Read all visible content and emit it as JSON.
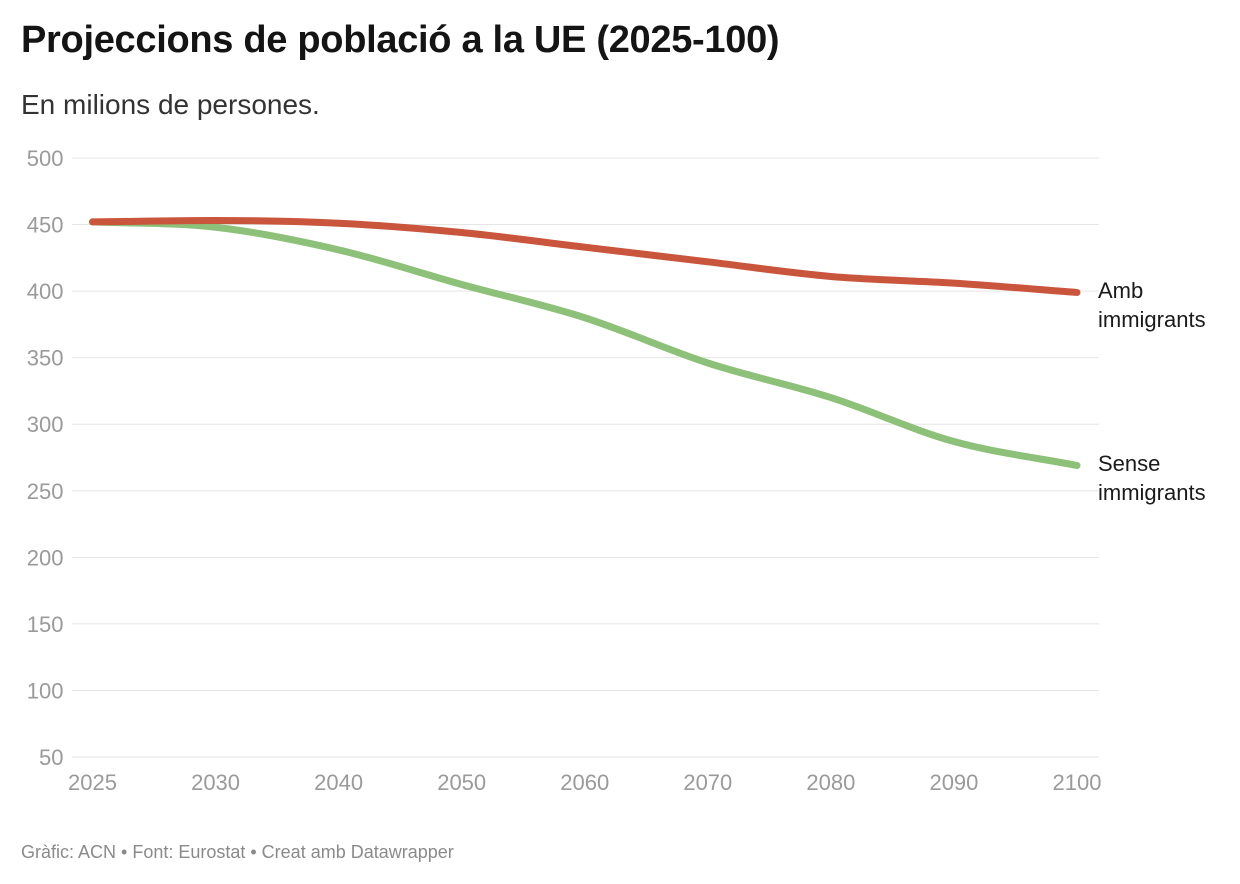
{
  "header": {
    "title": "Projeccions de població a la UE (2025-100)",
    "subtitle": "En milions de persones."
  },
  "footer": {
    "credit": "Gràfic: ACN • Font: Eurostat • Creat amb Datawrapper"
  },
  "colors": {
    "amb_immigrants": "#ca553d",
    "sense_immigrants": "#8dc078",
    "gridline": "#e5e5e5",
    "tick_text": "#9a9a9a",
    "label_text": "#1a1a1a"
  },
  "chart_data": {
    "type": "line",
    "title": "Projeccions de població a la UE (2025-100)",
    "subtitle": "En milions de persones.",
    "source": "Gràfic: ACN • Font: Eurostat • Creat amb Datawrapper",
    "x_scale": "categorical",
    "categories": [
      "2025",
      "2030",
      "2040",
      "2050",
      "2060",
      "2070",
      "2080",
      "2090",
      "2100"
    ],
    "series": [
      {
        "name": "Amb immigrants",
        "color": "#ca553d",
        "values": [
          452,
          453,
          451,
          444,
          433,
          422,
          411,
          406,
          399
        ]
      },
      {
        "name": "Sense immigrants",
        "color": "#8dc078",
        "values": [
          452,
          448,
          431,
          405,
          380,
          346,
          320,
          287,
          269
        ]
      }
    ],
    "xlabel": "",
    "ylabel": "",
    "ylim": [
      50,
      500
    ],
    "yticks": [
      50,
      100,
      150,
      200,
      250,
      300,
      350,
      400,
      450,
      500
    ],
    "grid": "horizontal",
    "legend_position": "line-end-labels-right",
    "interpolation": "monotone-curve"
  }
}
